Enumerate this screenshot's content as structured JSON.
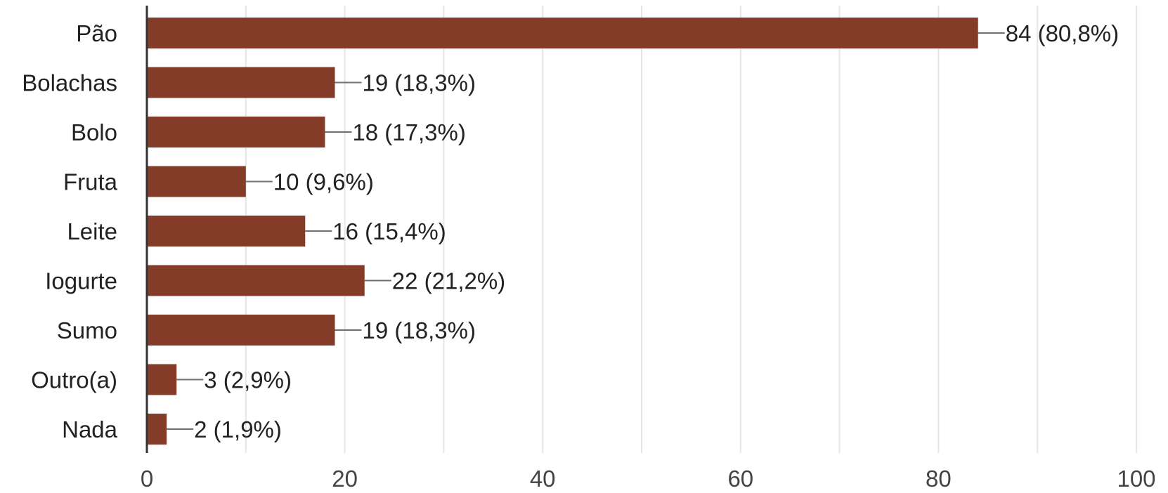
{
  "chart_data": {
    "type": "bar",
    "orientation": "horizontal",
    "title": "",
    "xlabel": "",
    "ylabel": "",
    "xlim": [
      0,
      100
    ],
    "x_ticks": [
      0,
      20,
      40,
      60,
      80,
      100
    ],
    "x_tick_labels": [
      "0",
      "20",
      "40",
      "60",
      "80",
      "100"
    ],
    "minor_grid_step": 10,
    "grid": true,
    "legend": "none",
    "bar_color": "#843c29",
    "categories": [
      "Pão",
      "Bolachas",
      "Bolo",
      "Fruta",
      "Leite",
      "Iogurte",
      "Sumo",
      "Outro(a)",
      "Nada"
    ],
    "values": [
      84,
      19,
      18,
      10,
      16,
      22,
      19,
      3,
      2
    ],
    "data_labels": [
      "84 (80,8%)",
      "19 (18,3%)",
      "18 (17,3%)",
      "10 (9,6%)",
      "16 (15,4%)",
      "22 (21,2%)",
      "19 (18,3%)",
      "3 (2,9%)",
      "2 (1,9%)"
    ]
  }
}
